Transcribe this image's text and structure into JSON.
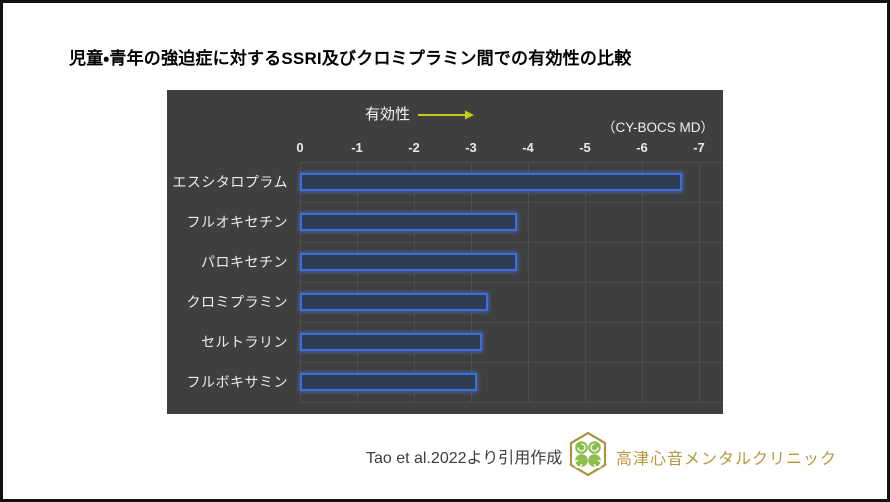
{
  "page": {
    "title": "児童・青年の強迫症に対するSSRI及びクロミプラミン間での有効性の比較"
  },
  "chart": {
    "effectiveness_label": "有効性",
    "unit_label": "（CY-BOCS MD）",
    "colors": {
      "panel_bg": "#3f3f3f",
      "gridline": "#4d4d4d",
      "bar_fill": "#303c52",
      "bar_border": "#3b6fde",
      "arrow_yellow": "#c3cc1e",
      "axis_text": "#e9e9e9"
    }
  },
  "chart_data": {
    "type": "bar",
    "orientation": "horizontal",
    "title": "児童・青年の強迫症に対するSSRI及びクロミプラミン間での有効性の比較",
    "categories": [
      "エスシタロプラム",
      "フルオキセチン",
      "パロキセチン",
      "クロミプラミン",
      "セルトラリン",
      "フルボキサミン"
    ],
    "values": [
      -6.7,
      -3.8,
      -3.8,
      -3.3,
      -3.2,
      -3.1
    ],
    "x_ticks": [
      0,
      -1,
      -2,
      -3,
      -4,
      -5,
      -6,
      -7
    ],
    "xlim": [
      0,
      -7
    ],
    "xlabel": "有効性（CY-BOCS MD）",
    "ylabel": "",
    "grid": true,
    "legend": false,
    "bar_direction": "left-to-right, more negative = longer bar"
  },
  "footer": {
    "source": "Tao et al.2022より引用作成",
    "clinic_name": "高津心音メンタルクリニック",
    "logo": "hexagon-clover-logo"
  }
}
